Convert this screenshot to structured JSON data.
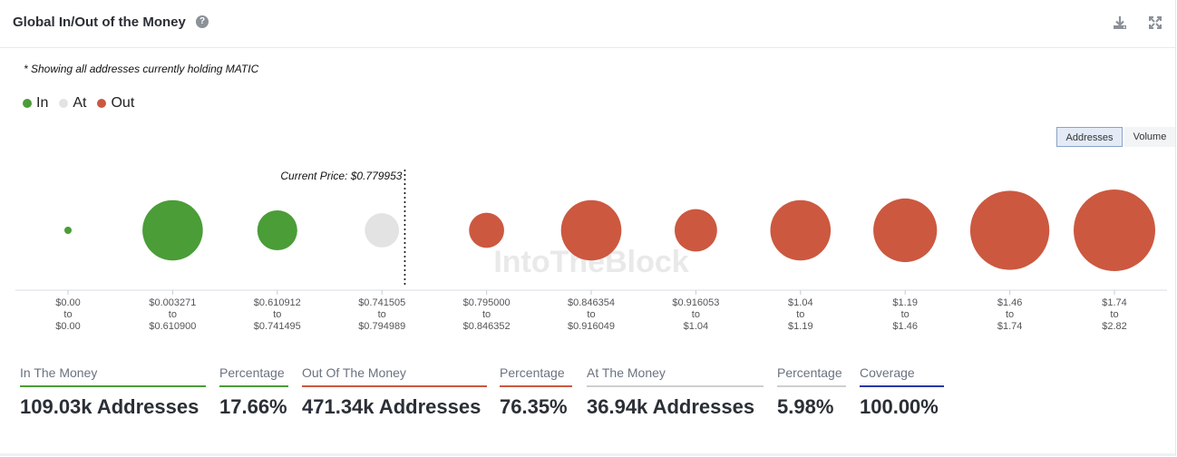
{
  "header": {
    "title": "Global In/Out of the Money",
    "help_icon": "question-circle-icon",
    "download_icon": "download-icon",
    "expand_icon": "expand-icon"
  },
  "note": "* Showing all addresses currently holding MATIC",
  "legend": [
    {
      "label": "In",
      "color": "#4a9d37"
    },
    {
      "label": "At",
      "color": "#e3e3e3"
    },
    {
      "label": "Out",
      "color": "#cc5840"
    }
  ],
  "toggle": {
    "addresses": "Addresses",
    "volume": "Volume",
    "selected": "Addresses"
  },
  "watermark": "IntoTheBlock",
  "chart_data": {
    "type": "bubble",
    "title": "Global In/Out of the Money",
    "current_price_label": "Current Price: $0.779953",
    "current_price": 0.779953,
    "metric": "Addresses",
    "buckets": [
      {
        "from": "$0.00",
        "to": "$0.00",
        "status": "in",
        "size": 0.05
      },
      {
        "from": "$0.003271",
        "to": "$0.610900",
        "status": "in",
        "size": 0.74
      },
      {
        "from": "$0.610912",
        "to": "$0.741495",
        "status": "in",
        "size": 0.49
      },
      {
        "from": "$0.741505",
        "to": "$0.794989",
        "status": "at",
        "size": 0.42
      },
      {
        "from": "$0.795000",
        "to": "$0.846352",
        "status": "out",
        "size": 0.43
      },
      {
        "from": "$0.846354",
        "to": "$0.916049",
        "status": "out",
        "size": 0.74
      },
      {
        "from": "$0.916053",
        "to": "$1.04",
        "status": "out",
        "size": 0.52
      },
      {
        "from": "$1.04",
        "to": "$1.19",
        "status": "out",
        "size": 0.74
      },
      {
        "from": "$1.19",
        "to": "$1.46",
        "status": "out",
        "size": 0.78
      },
      {
        "from": "$1.46",
        "to": "$1.74",
        "status": "out",
        "size": 0.97
      },
      {
        "from": "$1.74",
        "to": "$2.82",
        "status": "out",
        "size": 1.0
      }
    ],
    "range_word": "to",
    "colors": {
      "in": "#4a9d37",
      "at": "#e3e3e3",
      "out": "#cc5840"
    }
  },
  "stats": [
    {
      "label": "In The Money",
      "value": "109.03k Addresses",
      "color": "#4a9d37"
    },
    {
      "label": "Percentage",
      "value": "17.66%",
      "color": "#4a9d37"
    },
    {
      "label": "Out Of The Money",
      "value": "471.34k Addresses",
      "color": "#cc5840"
    },
    {
      "label": "Percentage",
      "value": "76.35%",
      "color": "#cc5840"
    },
    {
      "label": "At The Money",
      "value": "36.94k Addresses",
      "color": "#cfcfcf"
    },
    {
      "label": "Percentage",
      "value": "5.98%",
      "color": "#cfcfcf"
    },
    {
      "label": "Coverage",
      "value": "100.00%",
      "color": "#2637a8"
    }
  ]
}
